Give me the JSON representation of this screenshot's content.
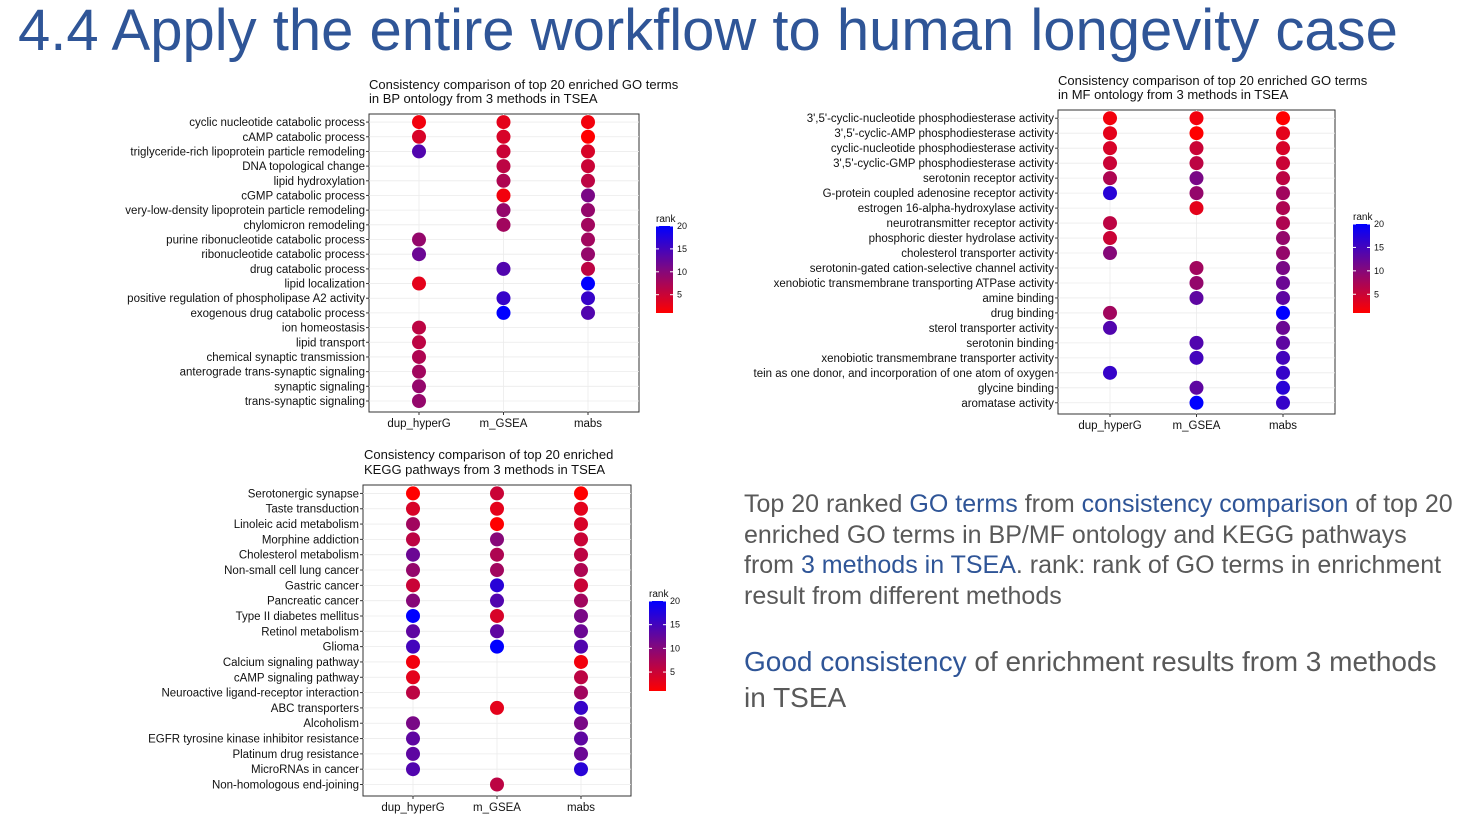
{
  "slide": {
    "title": "4.4 Apply the entire workflow to human longevity case",
    "desc1": {
      "t1": "Top 20 ranked ",
      "h1": "GO terms",
      "t2": " from ",
      "h2": "consistency comparison",
      "t3": " of top 20 enriched GO terms in BP/MF ontology and KEGG pathways from ",
      "h3": "3 methods in TSEA",
      "t4": ". rank: rank of GO terms in enrichment result from different methods"
    },
    "desc2": {
      "h1": "Good consistency",
      "t1": " of enrichment results from 3 methods in TSEA"
    },
    "colors": {
      "title": "#2f5597",
      "text": "#595959",
      "low_rank": "#ff0000",
      "high_rank": "#0000ff"
    }
  },
  "chart_data": [
    {
      "id": "bp",
      "type": "scatter",
      "title": [
        "Consistency comparison of top 20 enriched GO terms",
        " in BP ontology from 3 methods in TSEA"
      ],
      "methods": [
        "dup_hyperG",
        "m_GSEA",
        "mabs"
      ],
      "legend": {
        "title": "rank",
        "ticks": [
          5,
          10,
          15,
          20
        ],
        "range": [
          1,
          20
        ],
        "position": "right"
      },
      "grid": true,
      "terms": [
        "cyclic nucleotide catabolic process",
        "cAMP catabolic process",
        "triglyceride-rich lipoprotein particle remodeling",
        "DNA topological change",
        "lipid hydroxylation",
        "cGMP catabolic process",
        "very-low-density lipoprotein particle remodeling",
        "chylomicron remodeling",
        "purine ribonucleotide catabolic process",
        "ribonucleotide catabolic process",
        "drug catabolic process",
        "lipid localization",
        "positive regulation of phospholipase A2 activity",
        "exogenous drug catabolic process",
        "ion homeostasis",
        "lipid transport",
        "chemical synaptic transmission",
        "anterograde trans-synaptic signaling",
        "synaptic signaling",
        "trans-synaptic signaling"
      ],
      "ranks": [
        [
          2,
          3,
          2
        ],
        [
          4,
          4,
          1
        ],
        [
          14,
          5,
          4
        ],
        [
          null,
          6,
          5
        ],
        [
          null,
          7,
          6
        ],
        [
          null,
          2,
          11
        ],
        [
          null,
          9,
          9
        ],
        [
          null,
          8,
          8
        ],
        [
          9,
          null,
          8
        ],
        [
          12,
          null,
          9
        ],
        [
          null,
          14,
          6
        ],
        [
          3,
          null,
          20
        ],
        [
          null,
          16,
          16
        ],
        [
          null,
          20,
          14
        ],
        [
          6,
          null,
          null
        ],
        [
          6,
          null,
          null
        ],
        [
          7,
          null,
          null
        ],
        [
          8,
          null,
          null
        ],
        [
          9,
          null,
          null
        ],
        [
          9,
          null,
          null
        ]
      ]
    },
    {
      "id": "mf",
      "type": "scatter",
      "title": [
        "Consistency comparison of top 20 enriched GO terms",
        " in MF ontology from 3 methods in TSEA"
      ],
      "methods": [
        "dup_hyperG",
        "m_GSEA",
        "mabs"
      ],
      "legend": {
        "title": "rank",
        "ticks": [
          5,
          10,
          15,
          20
        ],
        "range": [
          1,
          20
        ],
        "position": "right"
      },
      "grid": true,
      "terms": [
        "3',5'-cyclic-nucleotide phosphodiesterase activity",
        "3',5'-cyclic-AMP phosphodiesterase activity",
        "cyclic-nucleotide phosphodiesterase activity",
        "3',5'-cyclic-GMP phosphodiesterase activity",
        "serotonin receptor activity",
        "G-protein coupled adenosine receptor activity",
        "estrogen 16-alpha-hydroxylase activity",
        "neurotransmitter receptor activity",
        "phosphoric diester hydrolase activity",
        "cholesterol transporter activity",
        "serotonin-gated cation-selective channel activity",
        "xenobiotic transmembrane transporting ATPase activity",
        "amine binding",
        "drug binding",
        "sterol transporter activity",
        "serotonin binding",
        "xenobiotic transmembrane transporter activity",
        "tein as one donor, and incorporation of one atom of oxygen",
        "glycine binding",
        "aromatase activity"
      ],
      "ranks": [
        [
          2,
          2,
          1
        ],
        [
          3,
          1,
          3
        ],
        [
          4,
          5,
          4
        ],
        [
          5,
          6,
          5
        ],
        [
          7,
          11,
          6
        ],
        [
          17,
          9,
          8
        ],
        [
          null,
          3,
          7
        ],
        [
          6,
          null,
          7
        ],
        [
          5,
          null,
          9
        ],
        [
          10,
          null,
          9
        ],
        [
          null,
          8,
          11
        ],
        [
          null,
          9,
          12
        ],
        [
          null,
          13,
          13
        ],
        [
          8,
          null,
          20
        ],
        [
          14,
          null,
          12
        ],
        [
          null,
          14,
          13
        ],
        [
          null,
          15,
          15
        ],
        [
          16,
          null,
          16
        ],
        [
          null,
          13,
          17
        ],
        [
          null,
          20,
          16
        ]
      ]
    },
    {
      "id": "kegg",
      "type": "scatter",
      "title": [
        "Consistency comparison of top 20 enriched",
        "KEGG pathways from 3 methods in TSEA"
      ],
      "methods": [
        "dup_hyperG",
        "m_GSEA",
        "mabs"
      ],
      "legend": {
        "title": "rank",
        "ticks": [
          5,
          10,
          15,
          20
        ],
        "range": [
          1,
          20
        ],
        "position": "right"
      },
      "grid": true,
      "terms": [
        "Serotonergic synapse",
        "Taste transduction",
        "Linoleic acid metabolism",
        "Morphine addiction",
        "Cholesterol metabolism",
        "Non-small cell lung cancer",
        "Gastric cancer",
        "Pancreatic cancer",
        "Type II diabetes mellitus",
        "Retinol metabolism",
        "Glioma",
        "Calcium signaling pathway",
        "cAMP signaling pathway",
        "Neuroactive ligand-receptor interaction",
        "ABC transporters",
        "Alcoholism",
        "EGFR tyrosine kinase inhibitor resistance",
        "Platinum drug resistance",
        "MicroRNAs in cancer",
        "Non-homologous end-joining"
      ],
      "ranks": [
        [
          1,
          5,
          1
        ],
        [
          4,
          3,
          3
        ],
        [
          8,
          1,
          4
        ],
        [
          6,
          10,
          5
        ],
        [
          12,
          7,
          6
        ],
        [
          9,
          8,
          7
        ],
        [
          5,
          17,
          5
        ],
        [
          10,
          14,
          8
        ],
        [
          20,
          4,
          11
        ],
        [
          13,
          13,
          12
        ],
        [
          15,
          20,
          14
        ],
        [
          2,
          null,
          2
        ],
        [
          3,
          null,
          6
        ],
        [
          6,
          null,
          8
        ],
        [
          null,
          3,
          16
        ],
        [
          11,
          null,
          11
        ],
        [
          13,
          null,
          13
        ],
        [
          13,
          null,
          12
        ],
        [
          14,
          null,
          17
        ],
        [
          null,
          6,
          null
        ]
      ]
    }
  ]
}
